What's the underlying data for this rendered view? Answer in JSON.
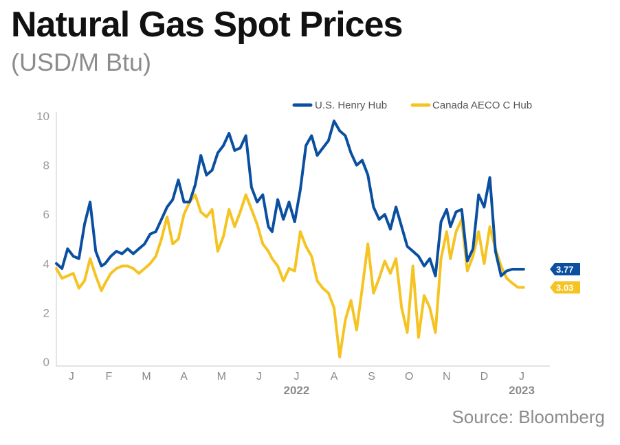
{
  "title": "Natural Gas Spot Prices",
  "subtitle": "(USD/M Btu)",
  "source": "Source: Bloomberg",
  "chart_data": {
    "type": "line",
    "title": "Natural Gas Spot Prices",
    "subtitle": "(USD/M Btu)",
    "xlabel": "",
    "ylabel": "",
    "ylim": [
      0,
      10
    ],
    "yticks": [
      0,
      2,
      4,
      6,
      8,
      10
    ],
    "xlim": [
      0,
      12.85
    ],
    "month_labels": [
      "J",
      "F",
      "M",
      "A",
      "M",
      "J",
      "J",
      "A",
      "S",
      "O",
      "N",
      "D",
      "J"
    ],
    "year_labels": [
      {
        "label": "2022",
        "x": 6.0
      },
      {
        "label": "2023",
        "x": 12.0
      }
    ],
    "grid": false,
    "legend_position": "top-right",
    "series": [
      {
        "name": "U.S. Henry Hub",
        "color": "#0a4fa0",
        "end_label": "3.77",
        "x": [
          0.0,
          0.15,
          0.3,
          0.45,
          0.6,
          0.75,
          0.9,
          1.05,
          1.2,
          1.3,
          1.45,
          1.6,
          1.75,
          1.9,
          2.05,
          2.2,
          2.35,
          2.5,
          2.65,
          2.8,
          2.95,
          3.1,
          3.25,
          3.4,
          3.55,
          3.7,
          3.85,
          4.0,
          4.15,
          4.3,
          4.45,
          4.6,
          4.75,
          4.9,
          5.05,
          5.2,
          5.35,
          5.5,
          5.65,
          5.75,
          5.9,
          6.05,
          6.2,
          6.35,
          6.5,
          6.65,
          6.8,
          6.95,
          7.1,
          7.25,
          7.4,
          7.55,
          7.7,
          7.85,
          8.0,
          8.15,
          8.3,
          8.45,
          8.6,
          8.75,
          8.9,
          9.05,
          9.2,
          9.35,
          9.5,
          9.65,
          9.8,
          9.95,
          10.1,
          10.25,
          10.4,
          10.5,
          10.65,
          10.8,
          10.95,
          11.1,
          11.25,
          11.4,
          11.55,
          11.7,
          11.85,
          12.0,
          12.15,
          12.3,
          12.45
        ],
        "values": [
          4.0,
          3.8,
          4.6,
          4.3,
          4.2,
          5.6,
          6.5,
          4.5,
          3.9,
          4.0,
          4.3,
          4.5,
          4.4,
          4.6,
          4.4,
          4.6,
          4.8,
          5.2,
          5.3,
          5.8,
          6.3,
          6.6,
          7.4,
          6.5,
          6.5,
          7.2,
          8.4,
          7.6,
          7.8,
          8.5,
          8.8,
          9.3,
          8.6,
          8.7,
          9.2,
          7.1,
          6.5,
          6.8,
          5.5,
          5.3,
          6.6,
          5.8,
          6.5,
          5.7,
          7.0,
          8.8,
          9.2,
          8.4,
          8.7,
          9.0,
          9.8,
          9.4,
          9.2,
          8.5,
          8.0,
          8.2,
          7.6,
          6.3,
          5.8,
          6.0,
          5.4,
          6.3,
          5.5,
          4.7,
          4.5,
          4.3,
          3.9,
          4.2,
          3.5,
          5.7,
          6.2,
          5.5,
          6.1,
          6.2,
          4.1,
          4.6,
          6.8,
          6.3,
          7.5,
          4.5,
          3.5,
          3.7,
          3.77,
          3.77,
          3.77
        ]
      },
      {
        "name": "Canada AECO C Hub",
        "color": "#f5c423",
        "end_label": "3.03",
        "x": [
          0.0,
          0.15,
          0.3,
          0.45,
          0.6,
          0.75,
          0.9,
          1.05,
          1.2,
          1.3,
          1.45,
          1.6,
          1.75,
          1.9,
          2.05,
          2.2,
          2.35,
          2.5,
          2.65,
          2.8,
          2.95,
          3.1,
          3.25,
          3.4,
          3.55,
          3.7,
          3.85,
          4.0,
          4.15,
          4.3,
          4.45,
          4.6,
          4.75,
          4.9,
          5.05,
          5.2,
          5.35,
          5.5,
          5.65,
          5.75,
          5.9,
          6.05,
          6.2,
          6.35,
          6.5,
          6.65,
          6.8,
          6.95,
          7.1,
          7.25,
          7.4,
          7.55,
          7.7,
          7.85,
          8.0,
          8.15,
          8.3,
          8.45,
          8.6,
          8.75,
          8.9,
          9.05,
          9.2,
          9.35,
          9.5,
          9.65,
          9.8,
          9.95,
          10.1,
          10.25,
          10.4,
          10.5,
          10.65,
          10.8,
          10.95,
          11.1,
          11.25,
          11.4,
          11.55,
          11.7,
          11.85,
          12.0,
          12.15,
          12.3,
          12.45
        ],
        "values": [
          3.8,
          3.4,
          3.5,
          3.6,
          3.0,
          3.3,
          4.2,
          3.5,
          2.9,
          3.2,
          3.6,
          3.8,
          3.9,
          3.9,
          3.8,
          3.6,
          3.8,
          4.0,
          4.3,
          5.0,
          5.9,
          4.8,
          5.0,
          6.0,
          6.5,
          6.8,
          6.1,
          5.9,
          6.2,
          4.5,
          5.1,
          6.2,
          5.5,
          6.1,
          6.8,
          6.2,
          5.6,
          4.8,
          4.5,
          4.2,
          3.9,
          3.3,
          3.8,
          3.7,
          5.3,
          4.7,
          4.3,
          3.3,
          3.0,
          2.8,
          2.2,
          0.2,
          1.7,
          2.5,
          1.3,
          3.0,
          4.8,
          2.8,
          3.4,
          4.1,
          3.6,
          4.2,
          2.2,
          1.2,
          3.9,
          1.0,
          2.7,
          2.2,
          1.2,
          4.2,
          5.3,
          4.2,
          5.3,
          5.8,
          3.7,
          4.3,
          5.3,
          4.0,
          5.5,
          4.6,
          3.9,
          3.4,
          3.2,
          3.03,
          3.03
        ]
      }
    ]
  }
}
